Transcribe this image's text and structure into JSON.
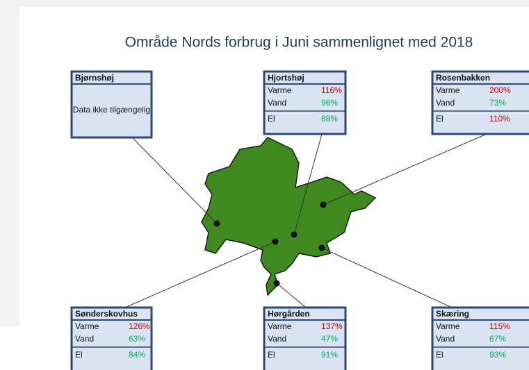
{
  "title": "Område Nords forbrug i Juni sammenlignet med 2018",
  "boxes": [
    {
      "name": "Bjørnshøj",
      "message": "Data ikke tilgængelig"
    },
    {
      "name": "Hjortshøj",
      "rows": [
        {
          "label": "Varme",
          "value": "116%",
          "color": "#c00000"
        },
        {
          "label": "Vand",
          "value": "96%",
          "color": "#00b050"
        },
        {
          "label": "El",
          "value": "88%",
          "color": "#00b050"
        }
      ]
    },
    {
      "name": "Rosenbakken",
      "rows": [
        {
          "label": "Varme",
          "value": "200%",
          "color": "#c00000"
        },
        {
          "label": "Vand",
          "value": "73%",
          "color": "#00b050"
        },
        {
          "label": "El",
          "value": "110%",
          "color": "#c00000"
        }
      ]
    },
    {
      "name": "Sønderskovhus",
      "rows": [
        {
          "label": "Varme",
          "value": "126%",
          "color": "#c00000"
        },
        {
          "label": "Vand",
          "value": "63%",
          "color": "#00b050"
        },
        {
          "label": "El",
          "value": "84%",
          "color": "#00b050"
        }
      ]
    },
    {
      "name": "Hørgården",
      "rows": [
        {
          "label": "Varme",
          "value": "137%",
          "color": "#c00000"
        },
        {
          "label": "Vand",
          "value": "47%",
          "color": "#00b050"
        },
        {
          "label": "El",
          "value": "91%",
          "color": "#00b050"
        }
      ]
    },
    {
      "name": "Skæring",
      "rows": [
        {
          "label": "Varme",
          "value": "115%",
          "color": "#c00000"
        },
        {
          "label": "Vand",
          "value": "67%",
          "color": "#00b050"
        },
        {
          "label": "El",
          "value": "93%",
          "color": "#00b050"
        }
      ]
    }
  ]
}
